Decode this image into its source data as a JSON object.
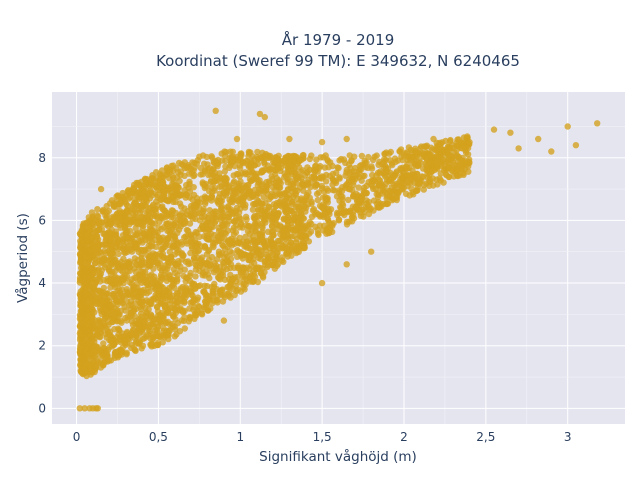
{
  "chart_data": {
    "type": "scatter",
    "title_line1": "År 1979 - 2019",
    "title_line2": "Koordinat (Sweref 99 TM): E 349632, N 6240465",
    "xlabel": "Signifikant våghöjd (m)",
    "ylabel": "Vågperiod (s)",
    "xlim": [
      -0.15,
      3.35
    ],
    "ylim": [
      -0.5,
      10.1
    ],
    "x_ticks": [
      0,
      0.5,
      1,
      1.5,
      2,
      2.5,
      3
    ],
    "x_tick_labels": [
      "0",
      "0,5",
      "1",
      "1,5",
      "2",
      "2,5",
      "3"
    ],
    "y_ticks": [
      0,
      2,
      4,
      6,
      8
    ],
    "y_tick_labels": [
      "0",
      "2",
      "4",
      "6",
      "8"
    ],
    "grid": true,
    "marker_color": "#D4A21E",
    "plot_background": "#E5E5F0",
    "outlier_points": [
      {
        "x": 0.85,
        "y": 9.5
      },
      {
        "x": 1.12,
        "y": 9.4
      },
      {
        "x": 1.15,
        "y": 9.3
      },
      {
        "x": 0.15,
        "y": 7.0
      },
      {
        "x": 0.98,
        "y": 8.6
      },
      {
        "x": 1.3,
        "y": 8.6
      },
      {
        "x": 1.5,
        "y": 8.5
      },
      {
        "x": 1.65,
        "y": 8.6
      },
      {
        "x": 2.18,
        "y": 8.6
      },
      {
        "x": 2.4,
        "y": 8.5
      },
      {
        "x": 2.55,
        "y": 8.9
      },
      {
        "x": 2.65,
        "y": 8.8
      },
      {
        "x": 2.82,
        "y": 8.6
      },
      {
        "x": 3.0,
        "y": 9.0
      },
      {
        "x": 3.18,
        "y": 9.1
      },
      {
        "x": 3.05,
        "y": 8.4
      },
      {
        "x": 2.9,
        "y": 8.2
      },
      {
        "x": 2.7,
        "y": 8.3
      },
      {
        "x": 1.8,
        "y": 5.0
      },
      {
        "x": 1.65,
        "y": 4.6
      },
      {
        "x": 1.5,
        "y": 4.0
      },
      {
        "x": 0.9,
        "y": 2.8
      },
      {
        "x": 0.6,
        "y": 2.3
      },
      {
        "x": 0.08,
        "y": 0.0
      },
      {
        "x": 0.12,
        "y": 0.0
      },
      {
        "x": 0.05,
        "y": 0.0
      },
      {
        "x": 0.1,
        "y": 0.0
      },
      {
        "x": 0.02,
        "y": 0.0
      },
      {
        "x": 0.13,
        "y": 0.0
      }
    ],
    "density_envelope": [
      {
        "x": 0.02,
        "y_min": 1.2,
        "y_max": 5.6
      },
      {
        "x": 0.05,
        "y_min": 1.0,
        "y_max": 6.0
      },
      {
        "x": 0.1,
        "y_min": 1.1,
        "y_max": 6.3
      },
      {
        "x": 0.2,
        "y_min": 1.5,
        "y_max": 6.6
      },
      {
        "x": 0.3,
        "y_min": 1.7,
        "y_max": 7.0
      },
      {
        "x": 0.4,
        "y_min": 1.9,
        "y_max": 7.3
      },
      {
        "x": 0.5,
        "y_min": 2.0,
        "y_max": 7.6
      },
      {
        "x": 0.6,
        "y_min": 2.3,
        "y_max": 7.8
      },
      {
        "x": 0.7,
        "y_min": 2.7,
        "y_max": 8.0
      },
      {
        "x": 0.8,
        "y_min": 3.1,
        "y_max": 8.1
      },
      {
        "x": 0.9,
        "y_min": 3.4,
        "y_max": 8.2
      },
      {
        "x": 1.0,
        "y_min": 3.7,
        "y_max": 8.2
      },
      {
        "x": 1.1,
        "y_min": 4.0,
        "y_max": 8.2
      },
      {
        "x": 1.2,
        "y_min": 4.4,
        "y_max": 8.1
      },
      {
        "x": 1.3,
        "y_min": 4.8,
        "y_max": 8.1
      },
      {
        "x": 1.4,
        "y_min": 5.1,
        "y_max": 8.1
      },
      {
        "x": 1.5,
        "y_min": 5.4,
        "y_max": 8.1
      },
      {
        "x": 1.6,
        "y_min": 5.7,
        "y_max": 8.1
      },
      {
        "x": 1.7,
        "y_min": 6.0,
        "y_max": 8.1
      },
      {
        "x": 1.8,
        "y_min": 6.2,
        "y_max": 8.1
      },
      {
        "x": 1.9,
        "y_min": 6.5,
        "y_max": 8.2
      },
      {
        "x": 2.0,
        "y_min": 6.7,
        "y_max": 8.3
      },
      {
        "x": 2.1,
        "y_min": 6.9,
        "y_max": 8.4
      },
      {
        "x": 2.2,
        "y_min": 7.1,
        "y_max": 8.5
      },
      {
        "x": 2.3,
        "y_min": 7.3,
        "y_max": 8.6
      },
      {
        "x": 2.4,
        "y_min": 7.5,
        "y_max": 8.7
      }
    ]
  }
}
